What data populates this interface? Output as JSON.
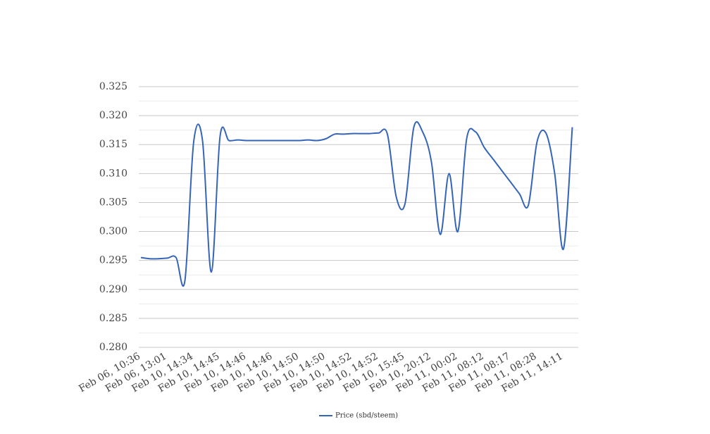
{
  "chart_data": {
    "type": "line",
    "categories": [
      "Feb 06, 10:36",
      null,
      null,
      "Feb 06, 13:01",
      null,
      null,
      "Feb 10, 14:34",
      null,
      null,
      "Feb 10, 14:45",
      null,
      null,
      "Feb 10, 14:46",
      null,
      null,
      "Feb 10, 14:46",
      null,
      null,
      "Feb 10, 14:50",
      null,
      null,
      "Feb 10, 14:50",
      null,
      null,
      "Feb 10, 14:52",
      null,
      null,
      "Feb 10, 14:52",
      null,
      null,
      "Feb 10, 15:45",
      null,
      null,
      "Feb 10, 20:12",
      null,
      null,
      "Feb 11, 00:02",
      null,
      null,
      "Feb 11, 08:12",
      null,
      null,
      "Feb 11, 08:17",
      null,
      null,
      "Feb 11, 08:28",
      null,
      null,
      "Feb 11, 14:11",
      null
    ],
    "series": [
      {
        "name": "Price (sbd/steem)",
        "color": "#3565b8",
        "values": [
          0.2955,
          0.2953,
          0.2953,
          0.2954,
          0.2955,
          0.2915,
          0.3155,
          0.3157,
          0.293,
          0.3165,
          0.3157,
          0.3158,
          0.3157,
          0.3157,
          0.3157,
          0.3157,
          0.3157,
          0.3157,
          0.3157,
          0.3158,
          0.3157,
          0.316,
          0.3168,
          0.3168,
          0.3169,
          0.3169,
          0.3169,
          0.317,
          0.3168,
          0.306,
          0.3048,
          0.318,
          0.3172,
          0.312,
          0.2995,
          0.31,
          0.3,
          0.316,
          0.3172,
          0.3145,
          0.3125,
          0.3105,
          0.3085,
          0.3065,
          0.3045,
          0.3155,
          0.317,
          0.31,
          0.297,
          0.318
        ]
      }
    ],
    "ylim": [
      0.28,
      0.325
    ],
    "yticks": [
      {
        "value": 0.28,
        "label": "0.280"
      },
      0.285,
      {
        "value": 0.29,
        "label": "0.290"
      },
      0.295,
      {
        "value": 0.3,
        "label": "0.300"
      },
      0.305,
      {
        "value": 0.31,
        "label": "0.310"
      },
      0.315,
      {
        "value": 0.32,
        "label": "0.320"
      },
      0.325
    ],
    "grid": true,
    "minor_grid": true,
    "legend": "bottom"
  }
}
